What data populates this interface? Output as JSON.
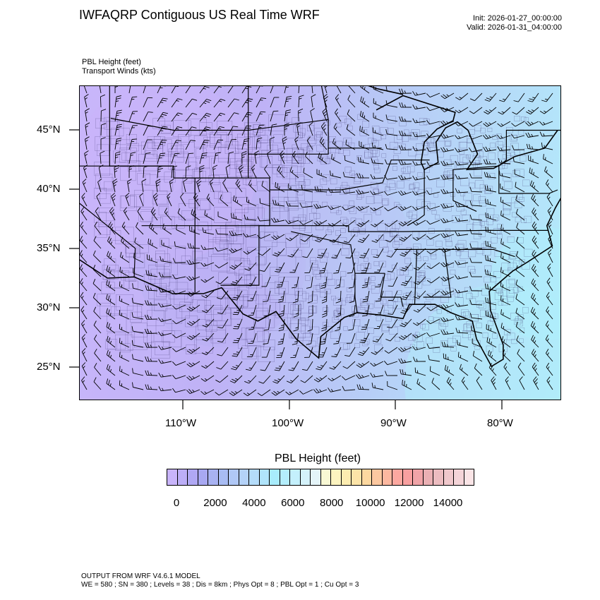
{
  "header": {
    "title": "IWFAQRP Contiguous US Real Time WRF",
    "init": "Init: 2026-01-27_00:00:00",
    "valid": "Valid: 2026-01-31_04:00:00"
  },
  "fields": {
    "primary": "PBL Height   (feet)",
    "secondary": "Transport Winds   (kts)"
  },
  "map": {
    "lat_labels": [
      "45°N",
      "40°N",
      "35°N",
      "30°N",
      "25°N"
    ],
    "lon_labels": [
      "110°W",
      "100°W",
      "90°W",
      "80°W"
    ],
    "lat_values": [
      45,
      40,
      35,
      30,
      25
    ],
    "lon_values": [
      -110,
      -100,
      -90,
      -80
    ],
    "extent": {
      "lon_min": -119.8,
      "lon_max": -74.6,
      "lat_min": 22.3,
      "lat_max": 48.7
    },
    "boundaries": [
      "state-lines",
      "county-lines",
      "coastlines"
    ],
    "overlay": "wind-barbs",
    "colors": {
      "low": "#c9b6fb",
      "mid": "#b8c6f6",
      "high": "#b2ecfb"
    }
  },
  "colorbar": {
    "title": "PBL Height  (feet)",
    "labels": [
      "0",
      "2000",
      "4000",
      "6000",
      "8000",
      "10000",
      "12000",
      "14000"
    ],
    "label_values": [
      0,
      2000,
      4000,
      6000,
      8000,
      10000,
      12000,
      14000
    ],
    "min": 0,
    "max": 15000,
    "step": 500,
    "colors": [
      "#c8b4fa",
      "#bcaef7",
      "#b0a8f4",
      "#a8a8f2",
      "#a8b2f2",
      "#a8bcf3",
      "#b0c8f6",
      "#b4d2f8",
      "#b4dcfa",
      "#b0e4fb",
      "#a8ecfc",
      "#b4eefc",
      "#c4f0fc",
      "#d4f2fa",
      "#e4f4f8",
      "#f8f8d4",
      "#fcf4c0",
      "#fcecb0",
      "#fce4a8",
      "#fcd8a0",
      "#fcc8a0",
      "#fcb8a0",
      "#fca8a0",
      "#f8a0a0",
      "#f0a4a8",
      "#eab0b4",
      "#ecbcc0",
      "#f0c8cc",
      "#f4d4d8",
      "#fae4e6"
    ]
  },
  "footer": {
    "line1": "OUTPUT FROM WRF V4.6.1 MODEL",
    "line2": "WE = 580 ; SN = 380 ; Levels = 38 ; Dis = 8km ; Phys Opt = 8 ; PBL Opt = 1 ; Cu Opt = 3"
  }
}
